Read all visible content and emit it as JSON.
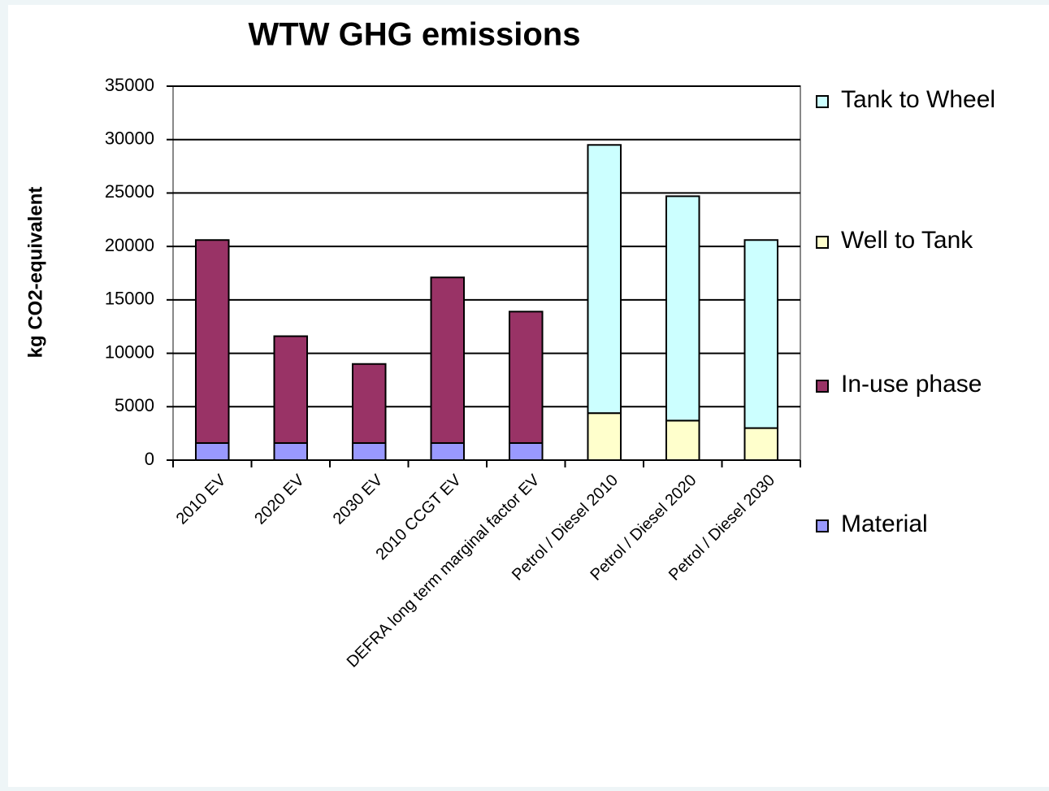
{
  "chart_data": {
    "type": "stacked-bar",
    "title": "WTW GHG emissions",
    "ylabel": "kg CO2-equivalent",
    "categories": [
      "2010 EV",
      "2020 EV",
      "2030 EV",
      "2010 CCGT EV",
      "DEFRA long term marginal factor EV",
      "Petrol / Diesel 2010",
      "Petrol / Diesel 2020",
      "Petrol / Diesel 2030"
    ],
    "series": [
      {
        "name": "Tank to Wheel",
        "color": "#ccffff",
        "values": [
          0,
          0,
          0,
          0,
          0,
          25100,
          21000,
          17600
        ]
      },
      {
        "name": "Well to Tank",
        "color": "#ffffcc",
        "values": [
          0,
          0,
          0,
          0,
          0,
          4400,
          3700,
          3000
        ]
      },
      {
        "name": "In-use phase",
        "color": "#993366",
        "values": [
          19000,
          10000,
          7400,
          15500,
          12300,
          0,
          0,
          0
        ]
      },
      {
        "name": "Material",
        "color": "#9999ff",
        "values": [
          1600,
          1600,
          1600,
          1600,
          1600,
          0,
          0,
          0
        ]
      }
    ],
    "ylim": [
      0,
      35000
    ],
    "yticks": [
      0,
      5000,
      10000,
      15000,
      20000,
      25000,
      30000,
      35000
    ],
    "grid": true,
    "legend": "right"
  }
}
